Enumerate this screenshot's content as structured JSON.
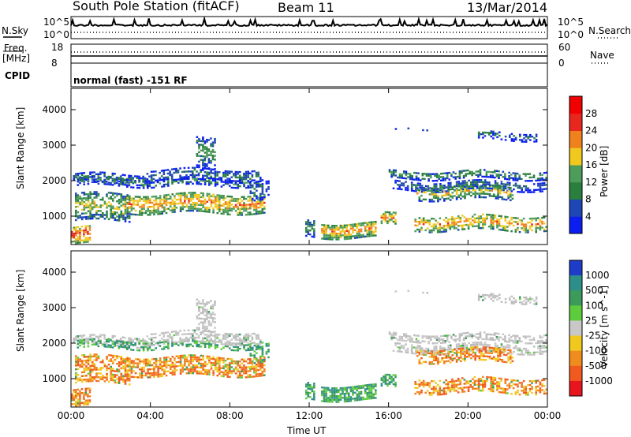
{
  "header": {
    "station": "South Pole Station (fitACF)",
    "beam": "Beam 11",
    "date": "13/Mar/2014"
  },
  "top_panels": {
    "nsky_label": "N.Sky",
    "nsearch_label": "N.Search",
    "noise_ticks_left": [
      "10^5",
      "10^0"
    ],
    "noise_ticks_right": [
      "10^5",
      "10^0"
    ],
    "freq_label_1": "Freq.",
    "freq_label_2": "[MHz]",
    "freq_ticks": [
      "18",
      "8"
    ],
    "nave_label": "Nave",
    "nave_ticks": [
      "60",
      "0"
    ],
    "cpid_label": "CPID",
    "cpid_value": "normal (fast) -151 RF"
  },
  "chart_data": [
    {
      "type": "heatmap",
      "name": "power",
      "ylabel": "Slant Range [km]",
      "xlabel": "",
      "ylim": [
        200,
        4600
      ],
      "yticks": [
        1000,
        2000,
        3000,
        4000
      ],
      "xticks": [
        "00:00",
        "04:00",
        "08:00",
        "12:00",
        "16:00",
        "20:00",
        "00:00"
      ],
      "colorbar": {
        "label": "Power [dB]",
        "ticks": [
          "4",
          "8",
          "12",
          "16",
          "20",
          "24",
          "28"
        ],
        "colors": [
          "#0a1ef0",
          "#1e46b4",
          "#2a7f3f",
          "#4e9c5a",
          "#f0c81e",
          "#f0821e",
          "#e8281e",
          "#f00000"
        ]
      }
    },
    {
      "type": "heatmap",
      "name": "velocity",
      "ylabel": "Slant Range [km]",
      "xlabel": "Time UT",
      "ylim": [
        200,
        4600
      ],
      "yticks": [
        1000,
        2000,
        3000,
        4000
      ],
      "xticks": [
        "00:00",
        "04:00",
        "08:00",
        "12:00",
        "16:00",
        "20:00",
        "00:00"
      ],
      "colorbar": {
        "label": "Velocity [m s^-1]",
        "ticks": [
          "1000",
          "500",
          "100",
          "25",
          "-25",
          "-100",
          "-500",
          "-1000"
        ],
        "colors": [
          "#1e3cc8",
          "#2e8e8a",
          "#3c9a5a",
          "#5ccc3c",
          "#c8c8c8",
          "#f0c81e",
          "#f08c1e",
          "#f05a1e",
          "#e8141e"
        ]
      }
    }
  ]
}
